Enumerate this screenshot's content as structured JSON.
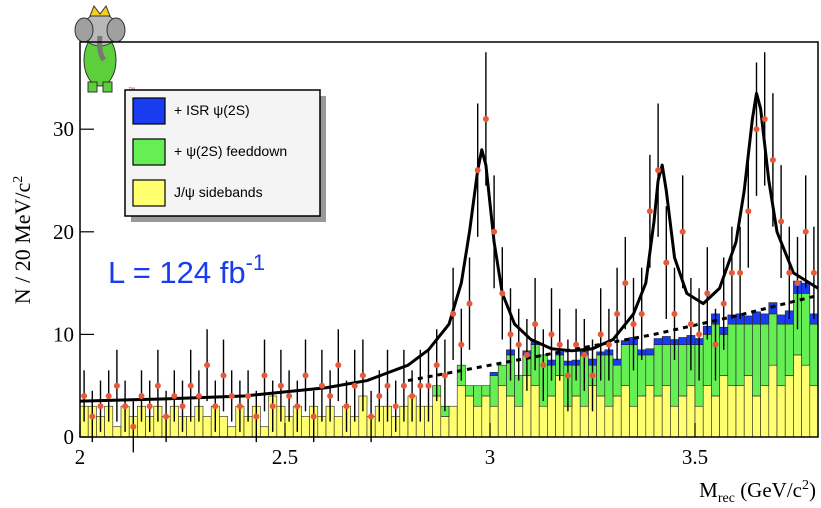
{
  "chart_data": {
    "type": "histogram",
    "ylabel": {
      "main": "N / 20 MeV/c",
      "sup": "2"
    },
    "xlabel": {
      "main": "M",
      "sub": "rec",
      "rest": " (GeV/c",
      "sup": "2",
      "end": ")"
    },
    "annotation": {
      "main": "L = 124 fb",
      "sup": "-1"
    },
    "legend": "upper left",
    "xlim": [
      2,
      3.8
    ],
    "ylim": [
      0,
      38.5
    ],
    "xticks": [
      2,
      2.5,
      3,
      3.5
    ],
    "yticks": [
      0,
      10,
      20,
      30
    ],
    "bins": [
      2,
      2.02,
      2.04,
      2.06,
      2.08,
      2.1,
      2.12,
      2.14,
      2.16,
      2.18,
      2.2,
      2.22,
      2.24,
      2.26,
      2.28,
      2.3,
      2.32,
      2.34,
      2.36,
      2.38,
      2.4,
      2.42,
      2.44,
      2.46,
      2.48,
      2.5,
      2.52,
      2.54,
      2.56,
      2.58,
      2.6,
      2.62,
      2.64,
      2.66,
      2.68,
      2.7,
      2.72,
      2.74,
      2.76,
      2.78,
      2.8,
      2.82,
      2.84,
      2.86,
      2.88,
      2.9,
      2.92,
      2.94,
      2.96,
      2.98,
      3,
      3.02,
      3.04,
      3.06,
      3.08,
      3.1,
      3.12,
      3.14,
      3.16,
      3.18,
      3.2,
      3.22,
      3.24,
      3.26,
      3.28,
      3.3,
      3.32,
      3.34,
      3.36,
      3.38,
      3.4,
      3.42,
      3.44,
      3.46,
      3.48,
      3.5,
      3.52,
      3.54,
      3.56,
      3.58,
      3.6,
      3.62,
      3.64,
      3.66,
      3.68,
      3.7,
      3.72,
      3.74,
      3.76,
      3.78,
      3.8
    ],
    "series": [
      {
        "name": "J/ψ sidebands",
        "color": "#ffff70",
        "values": [
          3,
          3,
          2,
          3,
          1,
          3,
          2,
          3,
          2,
          3,
          2,
          3,
          2,
          2,
          3,
          2,
          3,
          2,
          1,
          3,
          2,
          3,
          1,
          4,
          3,
          2,
          3,
          2,
          3,
          2,
          3,
          2,
          3,
          2,
          4,
          2,
          3,
          3,
          2,
          3,
          4,
          3,
          3,
          4,
          2,
          3,
          5,
          4,
          3,
          4,
          3,
          5,
          4,
          3,
          6,
          5,
          3,
          4,
          6,
          3,
          4,
          3,
          5,
          4,
          3,
          4,
          5,
          3,
          4,
          5,
          4,
          5,
          3,
          4,
          5,
          3,
          5,
          4,
          6,
          5,
          5,
          6,
          4,
          5,
          7,
          5,
          6,
          8,
          7,
          5
        ]
      },
      {
        "name": "+ ψ(2S) feeddown",
        "color": "#66ee55",
        "values": [
          0,
          0,
          0,
          0,
          0,
          0,
          0,
          0,
          0,
          0,
          0,
          0,
          0,
          0,
          0,
          0,
          0,
          0,
          0,
          0,
          0,
          0,
          0,
          0,
          0,
          0,
          0,
          0,
          0,
          0,
          0,
          0,
          0,
          0,
          0,
          0,
          0,
          0,
          0,
          0,
          0,
          0,
          0,
          1,
          1,
          0,
          2,
          1,
          2,
          1,
          3,
          2,
          4,
          3,
          2,
          4,
          5,
          3,
          2,
          4,
          3,
          5,
          2,
          4,
          5,
          3,
          4,
          6,
          4,
          3,
          5,
          4,
          6,
          5,
          4,
          6,
          5,
          7,
          4,
          6,
          6,
          5,
          7,
          6,
          5,
          6,
          5,
          6,
          7,
          6
        ]
      },
      {
        "name": "+ ISR ψ(2S)",
        "color": "#1a3cf0",
        "values": [
          0,
          0,
          0,
          0,
          0,
          0,
          0,
          0,
          0,
          0,
          0,
          0,
          0,
          0,
          0,
          0,
          0,
          0,
          0,
          0,
          0,
          0,
          0,
          0,
          0,
          0,
          0,
          0,
          0,
          0,
          0,
          0,
          0,
          0,
          0,
          0,
          0,
          0,
          0,
          0,
          0,
          0,
          0,
          0,
          0,
          0,
          0,
          0,
          0,
          0,
          0.3,
          0,
          0.5,
          0,
          0.4,
          0.3,
          0,
          0.5,
          0.3,
          0.4,
          0.5,
          0.4,
          0.6,
          0.3,
          0.5,
          0.6,
          0.4,
          0.7,
          0.5,
          0.6,
          0.6,
          0.8,
          0.5,
          0.7,
          0.9,
          0.6,
          0.8,
          1,
          0.7,
          0.9,
          1,
          0.8,
          1.2,
          1,
          1.1,
          0.9,
          1.3,
          1.2,
          1,
          1
        ]
      }
    ],
    "points": {
      "color": "#e8583a",
      "values": [
        4,
        2,
        3,
        4,
        5,
        3,
        1,
        4,
        3,
        5,
        2,
        4,
        3,
        5,
        4,
        7,
        3,
        6,
        4,
        3,
        4,
        2,
        6,
        3,
        5,
        4,
        3,
        6,
        2,
        5,
        4,
        7,
        3,
        5,
        6,
        2,
        4,
        5,
        3,
        5,
        4,
        5,
        5,
        7,
        6,
        12,
        9,
        13,
        26,
        31,
        20,
        14,
        10,
        9,
        8,
        11,
        7,
        10,
        9,
        6,
        9,
        8,
        6,
        10,
        9,
        12,
        15,
        11,
        12,
        22,
        26,
        17,
        12,
        20,
        11,
        10,
        14,
        9,
        13,
        16,
        16,
        22,
        30,
        31,
        27,
        21,
        16,
        15,
        20,
        16
      ],
      "errors": [
        2.5,
        2.5,
        2.5,
        2.5,
        3.5,
        2.5,
        2.5,
        2.5,
        2.5,
        3.5,
        2.5,
        2.5,
        2.5,
        3.5,
        2.5,
        3.5,
        2.5,
        3.5,
        2.5,
        2.5,
        2.5,
        2.5,
        3.5,
        2.5,
        3.5,
        2.5,
        2.5,
        3.5,
        2.5,
        3.5,
        2.5,
        3.5,
        2.5,
        3.5,
        3.5,
        2.5,
        2.5,
        3.5,
        2.5,
        3.5,
        2.5,
        3.5,
        3.5,
        3.5,
        3.5,
        4.5,
        3.5,
        4.5,
        6.5,
        6.5,
        5.5,
        4.5,
        4.5,
        3.5,
        3.5,
        4.5,
        3.5,
        4.5,
        3.5,
        3.5,
        3.5,
        3.5,
        3.5,
        4.5,
        3.5,
        4.5,
        4.5,
        4.5,
        4.5,
        5.5,
        6.5,
        5.5,
        4.5,
        5.5,
        4.5,
        4.5,
        4.5,
        3.5,
        4.5,
        4.5,
        4.5,
        5.5,
        6.5,
        6.5,
        6.5,
        5.5,
        4.5,
        4.5,
        5.5,
        4.5
      ]
    },
    "fit": {
      "color": "#000000",
      "x": [
        2.0,
        2.2,
        2.4,
        2.6,
        2.7,
        2.8,
        2.85,
        2.9,
        2.93,
        2.95,
        2.97,
        2.98,
        2.99,
        3.01,
        3.03,
        3.06,
        3.1,
        3.15,
        3.2,
        3.25,
        3.3,
        3.35,
        3.38,
        3.4,
        3.41,
        3.42,
        3.43,
        3.45,
        3.48,
        3.52,
        3.56,
        3.6,
        3.62,
        3.64,
        3.65,
        3.66,
        3.68,
        3.7,
        3.74,
        3.8
      ],
      "values": [
        3.5,
        3.7,
        4,
        4.8,
        5.5,
        7,
        8.5,
        11,
        15,
        20,
        26,
        28,
        26.5,
        19,
        14,
        11,
        9.5,
        8.6,
        8.4,
        8.6,
        9.5,
        12,
        15,
        21,
        25,
        26.5,
        24,
        17.5,
        14,
        13,
        14.5,
        19,
        24,
        31,
        33.5,
        32,
        25,
        20,
        16,
        14.5
      ]
    },
    "background": {
      "color": "#000000",
      "x": [
        2.8,
        3.0,
        3.2,
        3.4,
        3.6,
        3.8
      ],
      "values": [
        5.5,
        7,
        8.5,
        10,
        11.8,
        13.8
      ]
    }
  }
}
